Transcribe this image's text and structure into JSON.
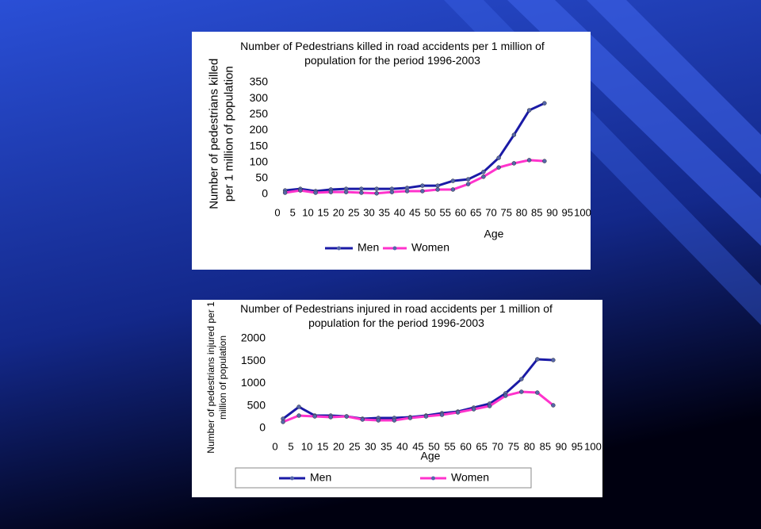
{
  "chart_data": [
    {
      "type": "line",
      "title": "Number of Pedestrians killed in road accidents per 1 million of population for the period 1996-2003",
      "y_label": "Number of pedestrians killed per 1 million of population",
      "x_label": "Age",
      "x": [
        2.5,
        7.5,
        12.5,
        17.5,
        22.5,
        27.5,
        32.5,
        37.5,
        42.5,
        47.5,
        52.5,
        57.5,
        62.5,
        67.5,
        72.5,
        77.5,
        82.5,
        87.5
      ],
      "series": [
        {
          "name": "Men",
          "color": "#1a1aa6",
          "values": [
            12,
            17,
            10,
            15,
            17,
            17,
            17,
            17,
            20,
            27,
            27,
            42,
            47,
            70,
            114,
            186,
            263,
            285
          ]
        },
        {
          "name": "Women",
          "color": "#ff33cc",
          "values": [
            5,
            12,
            5,
            7,
            7,
            5,
            3,
            7,
            10,
            10,
            15,
            15,
            32,
            55,
            84,
            97,
            107,
            104
          ]
        }
      ],
      "xlim": [
        0,
        100
      ],
      "xticks": [
        0,
        5,
        10,
        15,
        20,
        25,
        30,
        35,
        40,
        45,
        50,
        55,
        60,
        65,
        70,
        75,
        80,
        85,
        90,
        95,
        100
      ],
      "ylim": [
        0,
        350
      ],
      "yticks": [
        0,
        50,
        100,
        150,
        200,
        250,
        300,
        350
      ],
      "grid": false,
      "legend": "bottom"
    },
    {
      "type": "line",
      "title": "Number of Pedestrians injured in road accidents per 1 million of population for the period 1996-2003",
      "y_label": "Number of pedestrians injured per 1 million of population",
      "x_label": "Age",
      "x": [
        2.5,
        7.5,
        12.5,
        17.5,
        22.5,
        27.5,
        32.5,
        37.5,
        42.5,
        47.5,
        52.5,
        57.5,
        62.5,
        67.5,
        72.5,
        77.5,
        82.5,
        87.5
      ],
      "series": [
        {
          "name": "Men",
          "color": "#1a1aa6",
          "values": [
            212,
            478,
            283,
            283,
            265,
            212,
            230,
            230,
            248,
            283,
            336,
            372,
            460,
            549,
            779,
            1097,
            1540,
            1522
          ]
        },
        {
          "name": "Women",
          "color": "#ff33cc",
          "values": [
            142,
            283,
            265,
            248,
            265,
            195,
            177,
            177,
            230,
            265,
            301,
            354,
            425,
            496,
            726,
            814,
            796,
            513
          ]
        }
      ],
      "xlim": [
        0,
        100
      ],
      "xticks": [
        0,
        5,
        10,
        15,
        20,
        25,
        30,
        35,
        40,
        45,
        50,
        55,
        60,
        65,
        70,
        75,
        80,
        85,
        90,
        95,
        100
      ],
      "ylim": [
        0,
        2000
      ],
      "yticks": [
        0,
        500,
        1000,
        1500,
        2000
      ],
      "grid": false,
      "legend": "bottom"
    }
  ]
}
